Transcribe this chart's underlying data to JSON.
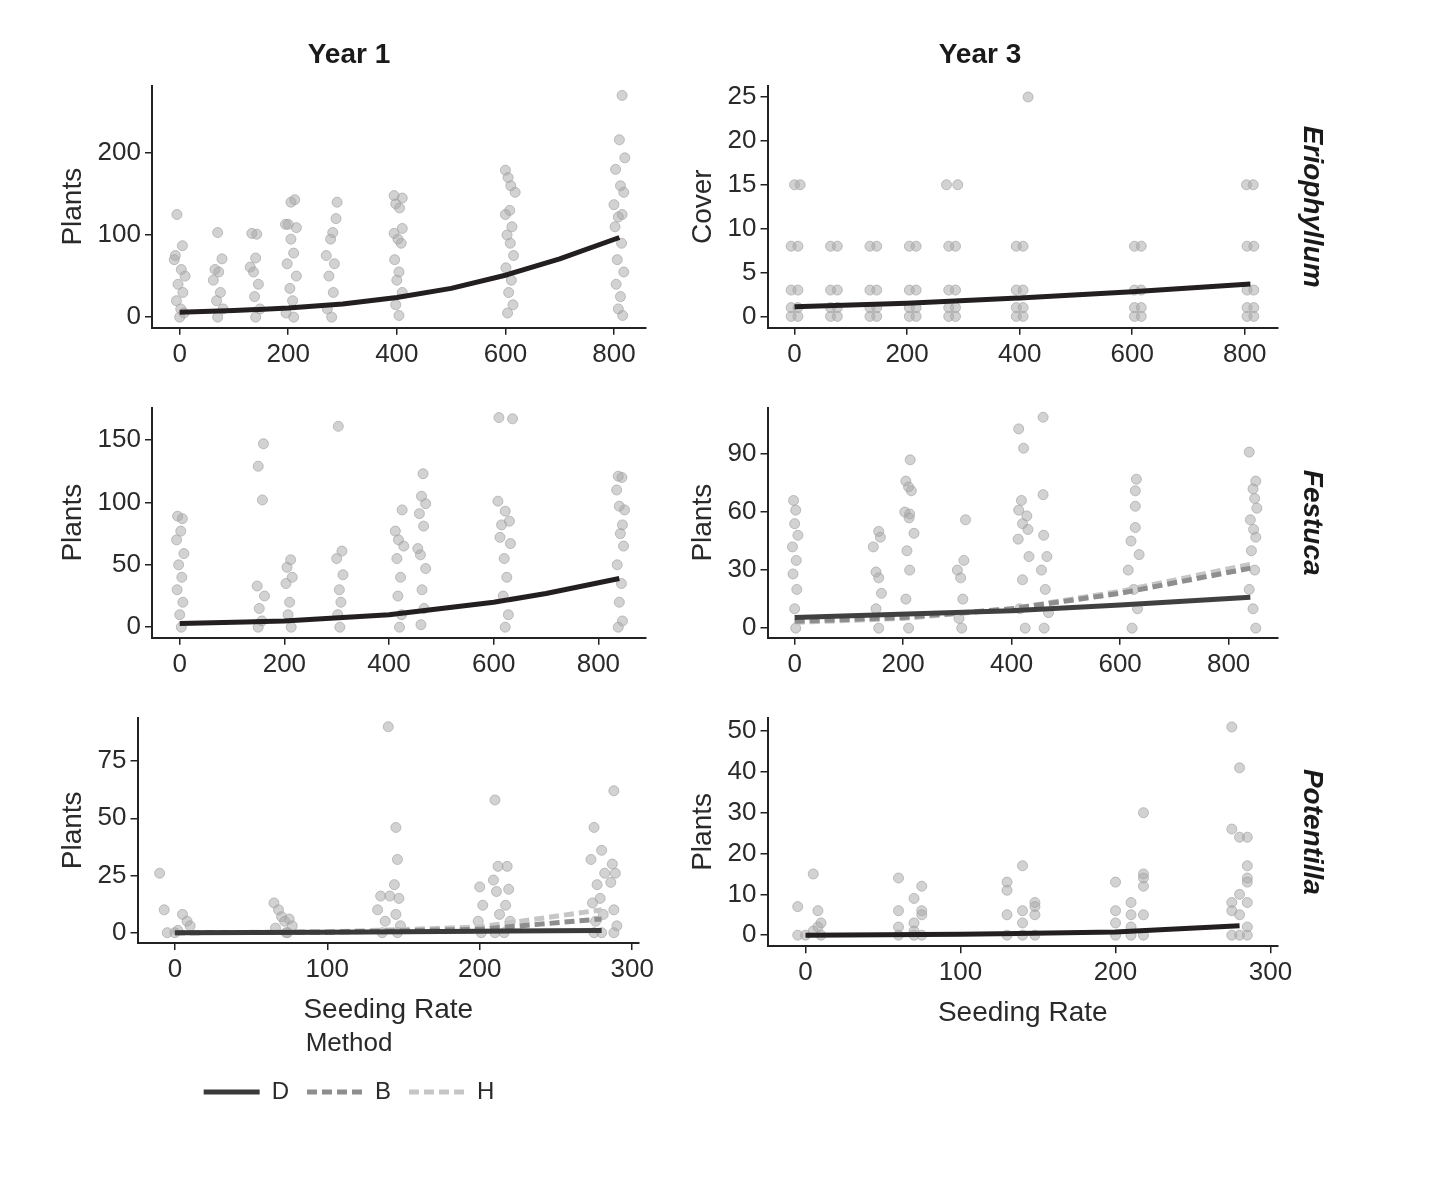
{
  "chart_data": [
    {
      "type": "scatter",
      "title": "Year 1",
      "ylabel": "Plants",
      "xlim": [
        -51,
        859
      ],
      "xticks": [
        0,
        200,
        400,
        600,
        800
      ],
      "ylim": [
        -13,
        282
      ],
      "yticks": [
        0,
        100,
        200
      ],
      "series": [
        {
          "type": "scatter",
          "color": "#a6a6a8",
          "marker": "circle",
          "x": [
            -5,
            5,
            -8,
            -10,
            3,
            10,
            -3,
            6,
            -6,
            2,
            8,
            0,
            70,
            78,
            65,
            72,
            62,
            75,
            68,
            80,
            70,
            133,
            142,
            140,
            130,
            136,
            145,
            138,
            148,
            140,
            212,
            205,
            195,
            200,
            215,
            205,
            210,
            198,
            215,
            203,
            208,
            196,
            210,
            290,
            288,
            282,
            278,
            270,
            285,
            275,
            283,
            272,
            280,
            395,
            410,
            398,
            405,
            410,
            395,
            402,
            408,
            396,
            404,
            400,
            410,
            398,
            404,
            600,
            605,
            610,
            618,
            608,
            600,
            612,
            603,
            609,
            615,
            601,
            611,
            606,
            614,
            604,
            815,
            810,
            820,
            803,
            812,
            818,
            800,
            815,
            808,
            802,
            814,
            806,
            818,
            804,
            812,
            808,
            816
          ],
          "values": [
            125,
            87,
            75,
            70,
            58,
            50,
            40,
            30,
            20,
            10,
            5,
            0,
            103,
            71,
            58,
            55,
            45,
            30,
            20,
            10,
            0,
            102,
            101,
            72,
            61,
            55,
            40,
            25,
            10,
            0,
            143,
            140,
            113,
            113,
            109,
            95,
            78,
            65,
            50,
            35,
            20,
            5,
            0,
            140,
            120,
            103,
            95,
            75,
            65,
            50,
            30,
            10,
            0,
            148,
            145,
            138,
            133,
            108,
            102,
            95,
            90,
            70,
            55,
            45,
            30,
            15,
            2,
            179,
            170,
            160,
            152,
            130,
            125,
            110,
            100,
            90,
            75,
            60,
            45,
            30,
            15,
            5,
            270,
            216,
            194,
            180,
            160,
            152,
            137,
            125,
            122,
            110,
            90,
            70,
            55,
            40,
            25,
            10,
            2
          ]
        },
        {
          "type": "line",
          "color": "#231f20",
          "line_style": "solid",
          "marker": "none",
          "x": [
            0,
            100,
            200,
            300,
            400,
            500,
            600,
            700,
            810
          ],
          "values": [
            6,
            8,
            11,
            16,
            24,
            35,
            51,
            71,
            97
          ]
        }
      ]
    },
    {
      "type": "scatter",
      "title": "Year 3",
      "annotations": [
        "Eriophyllum"
      ],
      "ylabel": "Cover",
      "xlim": [
        -48,
        859
      ],
      "xticks": [
        0,
        200,
        400,
        600,
        800
      ],
      "ylim": [
        -1.3,
        26.3
      ],
      "yticks": [
        0,
        5,
        10,
        15,
        20,
        25
      ],
      "series": [
        {
          "type": "scatter",
          "color": "#a6a6a8",
          "marker": "circle",
          "x": [
            -6,
            6,
            -6,
            6,
            -6,
            6,
            -6,
            6,
            64,
            76,
            64,
            76,
            64,
            76,
            64,
            76,
            134,
            146,
            134,
            146,
            134,
            146,
            134,
            146,
            204,
            216,
            204,
            216,
            204,
            216,
            204,
            216,
            274,
            286,
            274,
            286,
            274,
            286,
            274,
            286,
            394,
            406,
            394,
            406,
            394,
            406,
            394,
            406,
            604,
            616,
            604,
            616,
            604,
            616,
            604,
            616,
            804,
            816,
            804,
            816,
            804,
            816,
            804,
            816,
            0,
            10,
            270,
            290,
            415,
            803,
            815
          ],
          "values": [
            0,
            0,
            1,
            1,
            3,
            3,
            8,
            8,
            0,
            0,
            1,
            1,
            3,
            3,
            8,
            8,
            0,
            0,
            1,
            1,
            3,
            3,
            8,
            8,
            0,
            0,
            1,
            1,
            3,
            3,
            8,
            8,
            0,
            0,
            1,
            1,
            3,
            3,
            8,
            8,
            0,
            0,
            1,
            1,
            3,
            3,
            8,
            8,
            0,
            0,
            1,
            1,
            3,
            3,
            8,
            8,
            0,
            0,
            1,
            1,
            3,
            3,
            8,
            8,
            15,
            15,
            15,
            15,
            25,
            15,
            15
          ]
        },
        {
          "type": "line",
          "color": "#231f20",
          "line_style": "solid",
          "marker": "none",
          "x": [
            0,
            200,
            400,
            600,
            810
          ],
          "values": [
            1.1,
            1.5,
            2.1,
            2.8,
            3.7
          ]
        }
      ]
    },
    {
      "type": "scatter",
      "ylabel": "Plants",
      "xlim": [
        -53,
        891
      ],
      "xticks": [
        0,
        200,
        400,
        600,
        800
      ],
      "ylim": [
        -8.5,
        176
      ],
      "yticks": [
        0,
        50,
        100,
        150
      ],
      "series": [
        {
          "type": "scatter",
          "color": "#a6a6a8",
          "marker": "circle",
          "x": [
            -4,
            5,
            2,
            -6,
            8,
            -2,
            4,
            -5,
            6,
            0,
            3,
            160,
            150,
            158,
            148,
            162,
            152,
            157,
            150,
            212,
            205,
            215,
            203,
            210,
            207,
            213,
            303,
            310,
            300,
            312,
            305,
            308,
            302,
            306,
            425,
            412,
            418,
            428,
            415,
            422,
            417,
            424,
            420,
            465,
            462,
            470,
            458,
            466,
            455,
            460,
            470,
            463,
            467,
            461,
            610,
            636,
            608,
            622,
            630,
            615,
            612,
            632,
            620,
            625,
            618,
            628,
            622,
            838,
            845,
            835,
            840,
            850,
            846,
            842,
            848,
            836,
            844,
            840,
            846,
            838
          ],
          "values": [
            89,
            87,
            77,
            70,
            59,
            50,
            40,
            30,
            20,
            10,
            0,
            147,
            129,
            102,
            33,
            25,
            15,
            5,
            0,
            54,
            48,
            40,
            35,
            20,
            10,
            0,
            161,
            61,
            55,
            42,
            30,
            20,
            10,
            0,
            94,
            77,
            70,
            65,
            55,
            40,
            25,
            10,
            0,
            123,
            105,
            99,
            91,
            81,
            63,
            58,
            47,
            30,
            15,
            2,
            168,
            167,
            101,
            93,
            85,
            82,
            72,
            67,
            55,
            40,
            25,
            10,
            0,
            121,
            120,
            110,
            97,
            94,
            82,
            75,
            65,
            50,
            35,
            20,
            5,
            0
          ]
        },
        {
          "type": "line",
          "color": "#231f20",
          "line_style": "solid",
          "marker": "none",
          "x": [
            0,
            200,
            400,
            600,
            700,
            840
          ],
          "values": [
            3,
            5,
            10,
            20,
            27,
            39
          ]
        }
      ]
    },
    {
      "type": "scatter",
      "annotations": [
        "Festuca"
      ],
      "ylabel": "Plants",
      "xlim": [
        -50,
        891
      ],
      "xticks": [
        0,
        200,
        400,
        600,
        800
      ],
      "ylim": [
        -5,
        114
      ],
      "yticks": [
        0,
        30,
        60,
        90
      ],
      "series": [
        {
          "type": "scatter",
          "color": "#a6a6a8",
          "marker": "circle",
          "x": [
            -2,
            2,
            0,
            6,
            -4,
            3,
            -3,
            4,
            0,
            2,
            155,
            158,
            145,
            150,
            155,
            160,
            150,
            155,
            213,
            205,
            210,
            215,
            203,
            212,
            211,
            220,
            207,
            212,
            205,
            210,
            315,
            312,
            300,
            306,
            310,
            303,
            308,
            413,
            422,
            418,
            413,
            428,
            420,
            430,
            412,
            432,
            420,
            415,
            425,
            458,
            458,
            459,
            465,
            455,
            462,
            468,
            460,
            630,
            628,
            628,
            628,
            620,
            635,
            615,
            625,
            632,
            622,
            838,
            850,
            845,
            848,
            852,
            840,
            846,
            850,
            842,
            848,
            838,
            845,
            850
          ],
          "values": [
            66,
            61,
            54,
            48,
            42,
            35,
            28,
            20,
            10,
            0,
            50,
            47,
            42,
            29,
            26,
            18,
            10,
            0,
            87,
            76,
            73,
            71,
            60,
            59,
            57,
            49,
            40,
            30,
            15,
            0,
            56,
            35,
            30,
            26,
            15,
            5,
            0,
            103,
            93,
            66,
            61,
            58,
            54,
            51,
            46,
            37,
            25,
            10,
            0,
            109,
            69,
            48,
            37,
            30,
            20,
            8,
            0,
            77,
            71,
            63,
            52,
            45,
            38,
            30,
            20,
            10,
            0,
            91,
            76,
            72,
            67,
            62,
            56,
            51,
            47,
            40,
            30,
            20,
            10,
            0
          ]
        },
        {
          "type": "line",
          "color": "#404040",
          "line_style": "solid",
          "marker": "none",
          "x": [
            0,
            400,
            600,
            840
          ],
          "values": [
            5.5,
            9,
            12,
            16
          ]
        },
        {
          "type": "line",
          "color": "#8e8e8e",
          "line_style": "dashed",
          "marker": "none",
          "x": [
            0,
            200,
            400,
            600,
            840
          ],
          "values": [
            3.5,
            5.5,
            10,
            18,
            31
          ]
        },
        {
          "type": "line",
          "color": "#c6c6c6",
          "line_style": "dashed",
          "marker": "none",
          "x": [
            0,
            200,
            400,
            600,
            840
          ],
          "values": [
            3,
            5,
            10,
            19,
            33
          ]
        }
      ]
    },
    {
      "type": "scatter",
      "xlabel": "Seeding Rate",
      "ylabel": "Plants",
      "legend": "bottom",
      "legend_title": "Method",
      "xlim": [
        -24.5,
        304.5
      ],
      "xticks": [
        0,
        100,
        200,
        300
      ],
      "ylim": [
        -4.5,
        94
      ],
      "yticks": [
        0,
        25,
        50,
        75
      ],
      "series": [
        {
          "type": "scatter",
          "color": "#a6a6a8",
          "marker": "circle",
          "x": [
            -10,
            -7,
            5,
            8,
            10,
            -5,
            0,
            2,
            65,
            68,
            70,
            72,
            66,
            74,
            75,
            77,
            73,
            135,
            133,
            138,
            136,
            140,
            141,
            145,
            146,
            144,
            147,
            145,
            148,
            146,
            200,
            202,
            199,
            201,
            210,
            212,
            209,
            211,
            213,
            210,
            218,
            219,
            217,
            220,
            216,
            275,
            273,
            277,
            274,
            276,
            275,
            280,
            282,
            279,
            281,
            280,
            288,
            287,
            289,
            286,
            288,
            290,
            288
          ],
          "values": [
            26,
            10,
            8,
            5,
            3,
            0,
            0,
            1,
            13,
            10,
            7,
            5,
            2,
            0,
            6,
            3,
            0,
            16,
            10,
            5,
            0,
            90,
            16,
            46,
            32,
            21,
            15,
            8,
            3,
            0,
            20,
            12,
            5,
            0,
            58,
            29,
            23,
            18,
            8,
            0,
            29,
            19,
            12,
            5,
            0,
            46,
            32,
            21,
            13,
            5,
            0,
            36,
            26,
            15,
            8,
            0,
            62,
            30,
            26,
            22,
            10,
            3,
            0
          ]
        },
        {
          "type": "line",
          "name": "D",
          "marker": "none",
          "color": "#3a3a3a",
          "line_style": "solid",
          "x": [
            0,
            100,
            200,
            280
          ],
          "values": [
            0,
            0.2,
            0.6,
            1
          ]
        },
        {
          "type": "line",
          "name": "B",
          "marker": "none",
          "color": "#8e8e8e",
          "line_style": "dashed",
          "x": [
            0,
            100,
            200,
            280
          ],
          "values": [
            0,
            0.2,
            1.5,
            6
          ]
        },
        {
          "type": "line",
          "name": "H",
          "marker": "none",
          "color": "#c6c6c6",
          "line_style": "dashed",
          "x": [
            0,
            100,
            200,
            280
          ],
          "values": [
            0,
            0.3,
            2.5,
            10
          ]
        }
      ]
    },
    {
      "type": "scatter",
      "annotations": [
        "Potentilla"
      ],
      "xlabel": "Seeding Rate",
      "ylabel": "Plants",
      "xlim": [
        -24.5,
        304.8
      ],
      "xticks": [
        0,
        100,
        200,
        300
      ],
      "ylim": [
        -2.7,
        53.3
      ],
      "yticks": [
        0,
        10,
        20,
        30,
        40,
        50
      ],
      "series": [
        {
          "type": "scatter",
          "color": "#a6a6a8",
          "marker": "circle",
          "x": [
            -5,
            -5,
            0,
            5,
            5,
            8,
            8,
            10,
            10,
            60,
            60,
            60,
            60,
            70,
            70,
            70,
            70,
            75,
            75,
            75,
            75,
            130,
            130,
            130,
            130,
            140,
            140,
            140,
            140,
            148,
            148,
            148,
            148,
            200,
            200,
            200,
            200,
            210,
            210,
            210,
            210,
            218,
            218,
            218,
            218,
            218,
            218,
            275,
            275,
            275,
            275,
            275,
            280,
            280,
            280,
            280,
            280,
            285,
            285,
            285,
            285,
            285,
            285,
            285
          ],
          "values": [
            7,
            0,
            0,
            15,
            1,
            6,
            2,
            3,
            0,
            14,
            6,
            2,
            0,
            9,
            3,
            1,
            0,
            12,
            6,
            5,
            0,
            13,
            11,
            5,
            0,
            17,
            6,
            3,
            0,
            8,
            7,
            5,
            0,
            13,
            6,
            3,
            0,
            8,
            5,
            2,
            0,
            30,
            15,
            14,
            12,
            5,
            0,
            51,
            26,
            8,
            6,
            0,
            41,
            24,
            10,
            5,
            0,
            24,
            17,
            14,
            13,
            8,
            2,
            0
          ]
        },
        {
          "type": "line",
          "color": "#231f20",
          "line_style": "solid",
          "marker": "none",
          "x": [
            0,
            100,
            200,
            280
          ],
          "values": [
            0,
            0.2,
            0.8,
            2.3
          ]
        }
      ]
    }
  ]
}
